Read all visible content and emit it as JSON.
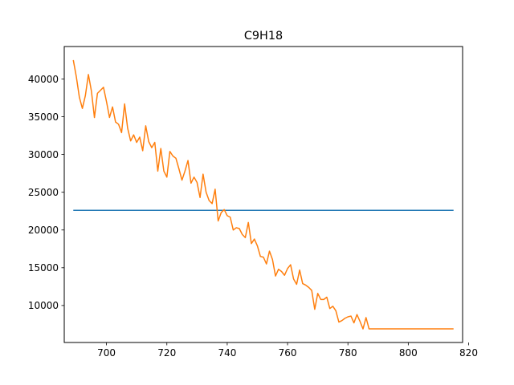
{
  "chart_data": {
    "type": "line",
    "title": "C9H18",
    "xlabel": "",
    "ylabel": "",
    "xlim": [
      686,
      818
    ],
    "ylim": [
      5100,
      44300
    ],
    "x_ticks": [
      700,
      720,
      740,
      760,
      780,
      800,
      820
    ],
    "y_ticks": [
      10000,
      15000,
      20000,
      25000,
      30000,
      35000,
      40000
    ],
    "grid": false,
    "series": [
      {
        "color": "#1f77b4",
        "x": [
          689,
          815
        ],
        "y": [
          22600,
          22600
        ]
      },
      {
        "color": "#ff7f0e",
        "x": [
          689,
          690,
          691,
          692,
          693,
          694,
          695,
          696,
          697,
          698,
          699,
          700,
          701,
          702,
          703,
          704,
          705,
          706,
          707,
          708,
          709,
          710,
          711,
          712,
          713,
          714,
          715,
          716,
          717,
          718,
          719,
          720,
          721,
          722,
          723,
          724,
          725,
          726,
          727,
          728,
          729,
          730,
          731,
          732,
          733,
          734,
          735,
          736,
          737,
          738,
          739,
          740,
          741,
          742,
          743,
          744,
          745,
          746,
          747,
          748,
          749,
          750,
          751,
          752,
          753,
          754,
          755,
          756,
          757,
          758,
          759,
          760,
          761,
          762,
          763,
          764,
          765,
          766,
          767,
          768,
          769,
          770,
          771,
          772,
          773,
          774,
          775,
          776,
          777,
          778,
          779,
          780,
          781,
          782,
          783,
          784,
          785,
          786,
          787,
          788,
          789,
          790,
          791,
          792,
          793,
          794,
          795,
          796,
          797,
          798,
          799,
          800,
          801,
          802,
          803,
          804,
          805,
          806,
          807,
          808,
          809,
          810,
          811,
          812,
          813,
          814,
          815
        ],
        "y": [
          42500,
          40300,
          37600,
          36100,
          37800,
          40600,
          38400,
          34900,
          38100,
          38500,
          38900,
          37000,
          34900,
          36300,
          34300,
          34000,
          32900,
          36700,
          33500,
          31800,
          32600,
          31600,
          32300,
          30500,
          33800,
          31700,
          30900,
          31600,
          27800,
          30800,
          27800,
          27000,
          30400,
          29800,
          29500,
          28100,
          26600,
          27800,
          29200,
          26200,
          27000,
          26300,
          24300,
          27400,
          25000,
          23900,
          23500,
          25400,
          21200,
          22300,
          22700,
          21900,
          21700,
          20000,
          20300,
          20200,
          19400,
          19000,
          21000,
          18200,
          18800,
          17900,
          16500,
          16400,
          15500,
          17200,
          16100,
          13900,
          14800,
          14500,
          14000,
          14900,
          15400,
          13500,
          12800,
          14700,
          12900,
          12700,
          12400,
          12000,
          9500,
          11600,
          10800,
          10800,
          11100,
          9600,
          9900,
          9300,
          7800,
          8000,
          8300,
          8500,
          8600,
          7700,
          8800,
          7900,
          6900,
          8400,
          6900,
          6900,
          6900,
          6900,
          6900,
          6900,
          6900,
          6900,
          6900,
          6900,
          6900,
          6900,
          6900,
          6900,
          6900,
          6900,
          6900,
          6900,
          6900,
          6900,
          6900,
          6900,
          6900,
          6900,
          6900,
          6900,
          6900,
          6900,
          6900
        ]
      }
    ]
  }
}
